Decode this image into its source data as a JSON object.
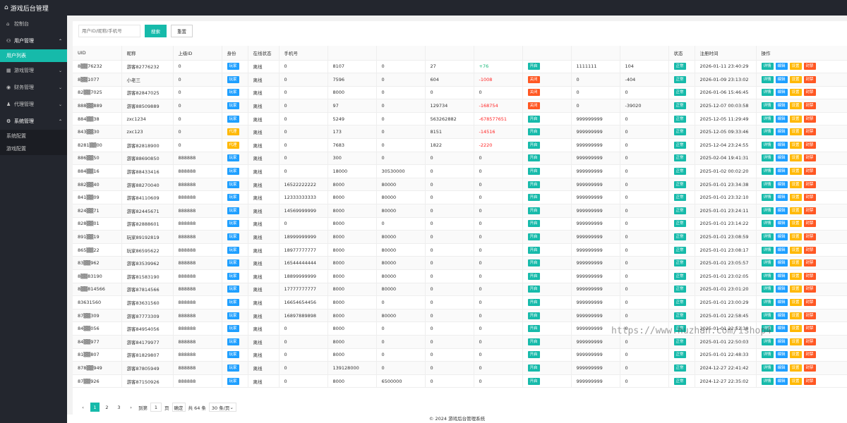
{
  "app": {
    "title": "游戏后台管理"
  },
  "sidebar": {
    "console": "控制台",
    "user_mgmt": "用户管理",
    "user_list": "用户列表",
    "game_mgmt": "游戏管理",
    "finance_mgmt": "财务管理",
    "agent_mgmt": "代理管理",
    "system_mgmt": "系统管理",
    "system_config": "系统配置",
    "game_config": "游戏配置"
  },
  "search": {
    "placeholder": "用户ID/昵称/手机号",
    "search_label": "搜索",
    "reset_label": "重置"
  },
  "table": {
    "headers": [
      "UID",
      "昵称",
      "上级ID",
      "身份",
      "在线状态",
      "手机号",
      "",
      "",
      "",
      "",
      "",
      "",
      "",
      "状态",
      "注册时间",
      "操作"
    ],
    "ops": {
      "detail": "详情",
      "edit": "编辑",
      "set": "设置",
      "ban": "封禁"
    },
    "rows": [
      [
        "8▒▒76232",
        "游客82776232",
        "0",
        "玩家",
        "离线",
        "0",
        "8107",
        "0",
        "27",
        "+76",
        "开启",
        "1111111",
        "104",
        "正常",
        "2026-01-11 23:40:29"
      ],
      [
        "8▒▒1077",
        "小老三",
        "0",
        "玩家",
        "离线",
        "0",
        "7596",
        "0",
        "604",
        "-1008",
        "关闭",
        "0",
        "-404",
        "正常",
        "2026-01-09 23:13:02"
      ],
      [
        "82▒▒7025",
        "游客82847025",
        "0",
        "玩家",
        "离线",
        "0",
        "8000",
        "0",
        "0",
        "0",
        "关闭",
        "0",
        "0",
        "正常",
        "2026-01-06 15:46:45"
      ],
      [
        "888▒▒889",
        "游客88509889",
        "0",
        "玩家",
        "离线",
        "0",
        "97",
        "0",
        "129734",
        "-168754",
        "关闭",
        "0",
        "-39020",
        "正常",
        "2025-12-07 00:03:58"
      ],
      [
        "884▒▒38",
        "zxc1234",
        "0",
        "玩家",
        "离线",
        "0",
        "5249",
        "0",
        "563262882",
        "-678577651",
        "开启",
        "999999999",
        "0",
        "正常",
        "2025-12-05 11:29:49"
      ],
      [
        "843▒▒30",
        "zxc123",
        "0",
        "代理",
        "离线",
        "0",
        "173",
        "0",
        "8151",
        "-14516",
        "开启",
        "999999999",
        "0",
        "正常",
        "2025-12-05 09:33:46"
      ],
      [
        "8281▒▒00",
        "游客82818900",
        "0",
        "代理",
        "离线",
        "0",
        "7683",
        "0",
        "1822",
        "-2220",
        "开启",
        "999999999",
        "0",
        "正常",
        "2025-12-04 23:24:55"
      ],
      [
        "886▒▒50",
        "游客88690850",
        "888888",
        "玩家",
        "离线",
        "0",
        "300",
        "0",
        "0",
        "0",
        "开启",
        "999999999",
        "0",
        "正常",
        "2025-02-04 19:41:31"
      ],
      [
        "884▒▒16",
        "游客88433416",
        "888888",
        "玩家",
        "离线",
        "0",
        "18000",
        "30530000",
        "0",
        "0",
        "开启",
        "999999999",
        "0",
        "正常",
        "2025-01-02 00:02:20"
      ],
      [
        "882▒▒40",
        "游客88270040",
        "888888",
        "玩家",
        "离线",
        "16522222222",
        "8000",
        "80000",
        "0",
        "0",
        "开启",
        "999999999",
        "0",
        "正常",
        "2025-01-01 23:34:38"
      ],
      [
        "841▒▒09",
        "游客84110609",
        "888888",
        "玩家",
        "离线",
        "12333333333",
        "8000",
        "80000",
        "0",
        "0",
        "开启",
        "999999999",
        "0",
        "正常",
        "2025-01-01 23:32:10"
      ],
      [
        "824▒▒71",
        "游客82445671",
        "888888",
        "玩家",
        "离线",
        "14569999999",
        "8000",
        "80000",
        "0",
        "0",
        "开启",
        "999999999",
        "0",
        "正常",
        "2025-01-01 23:24:11"
      ],
      [
        "828▒▒01",
        "游客82888601",
        "888888",
        "玩家",
        "离线",
        "0",
        "8000",
        "0",
        "0",
        "0",
        "开启",
        "999999999",
        "0",
        "正常",
        "2025-01-01 23:14:22"
      ],
      [
        "891▒▒19",
        "玩家89192819",
        "888888",
        "玩家",
        "离线",
        "18999999999",
        "8000",
        "80000",
        "0",
        "0",
        "开启",
        "999999999",
        "0",
        "正常",
        "2025-01-01 23:08:59"
      ],
      [
        "865▒▒22",
        "玩家86595622",
        "888888",
        "玩家",
        "离线",
        "18977777777",
        "8000",
        "80000",
        "0",
        "0",
        "开启",
        "999999999",
        "0",
        "正常",
        "2025-01-01 23:08:17"
      ],
      [
        "83▒▒962",
        "游客83539962",
        "888888",
        "玩家",
        "离线",
        "16544444444",
        "8000",
        "80000",
        "0",
        "0",
        "开启",
        "999999999",
        "0",
        "正常",
        "2025-01-01 23:05:57"
      ],
      [
        "8▒▒83190",
        "游客81583190",
        "888888",
        "玩家",
        "离线",
        "18899999999",
        "8000",
        "80000",
        "0",
        "0",
        "开启",
        "999999999",
        "0",
        "正常",
        "2025-01-01 23:02:05"
      ],
      [
        "8▒▒814566",
        "游客87814566",
        "888888",
        "玩家",
        "离线",
        "17777777777",
        "8000",
        "80000",
        "0",
        "0",
        "开启",
        "999999999",
        "0",
        "正常",
        "2025-01-01 23:01:20"
      ],
      [
        "83631560",
        "游客83631560",
        "888888",
        "玩家",
        "离线",
        "16654654456",
        "8000",
        "0",
        "0",
        "0",
        "开启",
        "999999999",
        "0",
        "正常",
        "2025-01-01 23:00:29"
      ],
      [
        "87▒▒309",
        "游客87773309",
        "888888",
        "玩家",
        "离线",
        "16897889898",
        "8000",
        "80000",
        "0",
        "0",
        "开启",
        "999999999",
        "0",
        "正常",
        "2025-01-01 22:58:45"
      ],
      [
        "84▒▒056",
        "游客84954056",
        "888888",
        "玩家",
        "离线",
        "0",
        "8000",
        "0",
        "0",
        "0",
        "开启",
        "999999999",
        "0",
        "正常",
        "2025-01-01 22:52:38"
      ],
      [
        "84▒▒977",
        "游客84179977",
        "888888",
        "玩家",
        "离线",
        "0",
        "8000",
        "0",
        "0",
        "0",
        "开启",
        "999999999",
        "0",
        "正常",
        "2025-01-01 22:50:03"
      ],
      [
        "81▒▒807",
        "游客81829807",
        "888888",
        "玩家",
        "离线",
        "0",
        "8000",
        "0",
        "0",
        "0",
        "开启",
        "999999999",
        "0",
        "正常",
        "2025-01-01 22:48:33"
      ],
      [
        "878▒▒949",
        "游客87805949",
        "888888",
        "玩家",
        "离线",
        "0",
        "139128000",
        "0",
        "0",
        "0",
        "开启",
        "999999999",
        "0",
        "正常",
        "2024-12-27 22:41:42"
      ],
      [
        "87▒▒926",
        "游客87150926",
        "888888",
        "玩家",
        "离线",
        "0",
        "8000",
        "6500000",
        "0",
        "0",
        "开启",
        "999999999",
        "0",
        "正常",
        "2024-12-27 22:35:02"
      ]
    ]
  },
  "pager": {
    "pages": [
      "1",
      "2",
      "3"
    ],
    "goto_label": "到第",
    "goto_value": "1",
    "page_unit": "页",
    "confirm": "确定",
    "total": "共 64 条",
    "per_page": "30 条/页"
  },
  "footer": {
    "copyright": "© 2024 游戏后台管理系统"
  },
  "watermark": "https://www.huzhan.com/ishop4"
}
